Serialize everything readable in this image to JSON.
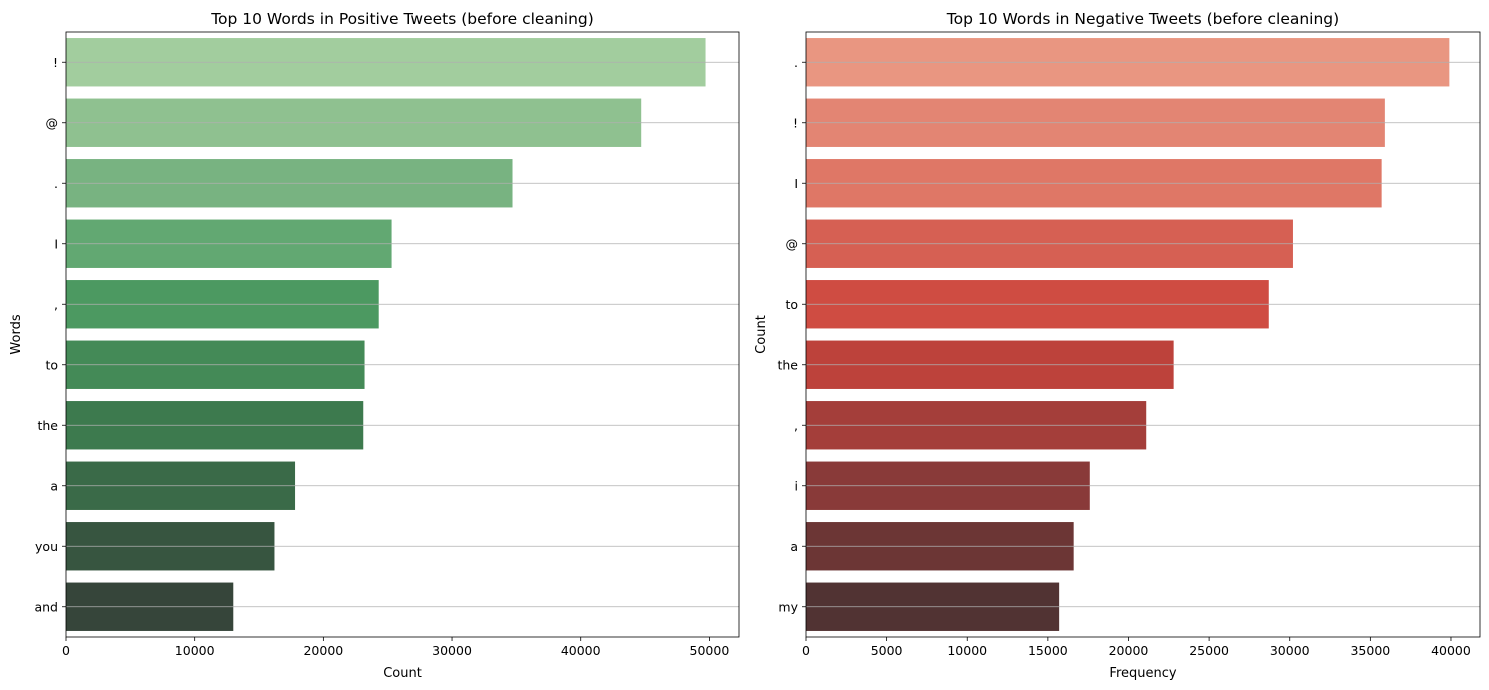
{
  "chart_data": [
    {
      "type": "bar",
      "orientation": "horizontal",
      "title": "Top 10 Words in Positive Tweets (before cleaning)",
      "xlabel": "Count",
      "ylabel": "Words",
      "categories": [
        "!",
        "@",
        ".",
        "I",
        ",",
        "to",
        "the",
        "a",
        "you",
        "and"
      ],
      "values": [
        49700,
        44700,
        34700,
        25300,
        24300,
        23200,
        23100,
        17800,
        16200,
        13000
      ],
      "xlim": [
        0,
        52300
      ],
      "xticks": [
        0,
        10000,
        20000,
        30000,
        40000,
        50000
      ],
      "grid": "horizontal",
      "colors": [
        "#a2cd9e",
        "#8fc190",
        "#78b381",
        "#62a872",
        "#4c9961",
        "#448a57",
        "#3d7a4e",
        "#3a6a48",
        "#375540",
        "#36453a"
      ]
    },
    {
      "type": "bar",
      "orientation": "horizontal",
      "title": "Top 10 Words in Negative Tweets (before cleaning)",
      "xlabel": "Frequency",
      "ylabel": "Count",
      "categories": [
        ".",
        "!",
        "I",
        "@",
        "to",
        "the",
        ",",
        "i",
        "a",
        "my"
      ],
      "values": [
        39900,
        35900,
        35700,
        30200,
        28700,
        22800,
        21100,
        17600,
        16600,
        15700
      ],
      "xlim": [
        0,
        41800
      ],
      "xticks": [
        0,
        5000,
        10000,
        15000,
        20000,
        25000,
        30000,
        35000,
        40000
      ],
      "grid": "horizontal",
      "colors": [
        "#e99681",
        "#e38573",
        "#df7766",
        "#d66053",
        "#cf4c42",
        "#bd423b",
        "#a43e3a",
        "#893a39",
        "#6c3635",
        "#513333"
      ]
    }
  ]
}
